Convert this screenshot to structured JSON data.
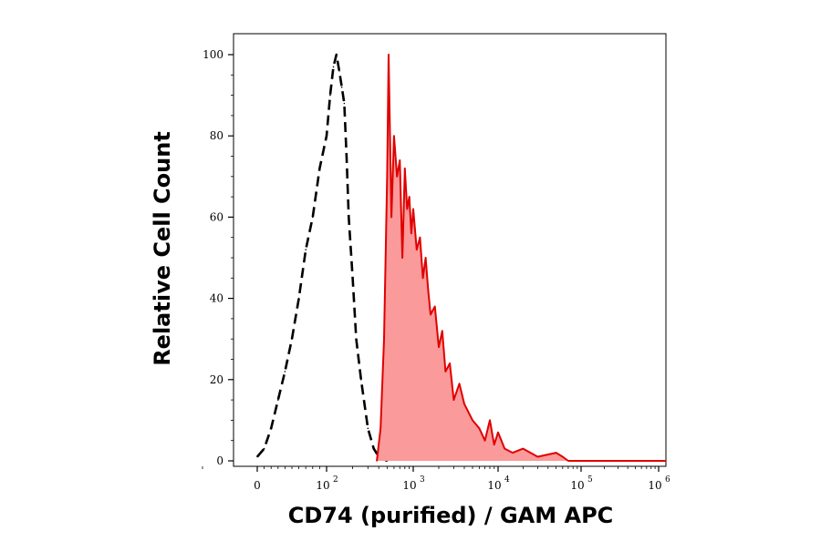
{
  "chart_data": {
    "type": "area",
    "xlabel": "CD74 (purified) / GAM APC",
    "ylabel": "Relative Cell Count",
    "x_scale": "biexponential",
    "xlim": [
      -1,
      1000000
    ],
    "ylim": [
      0,
      100
    ],
    "x_ticks": [
      {
        "base": "0",
        "exp": ""
      },
      {
        "base": "10",
        "exp": "2"
      },
      {
        "base": "10",
        "exp": "3"
      },
      {
        "base": "10",
        "exp": "4"
      },
      {
        "base": "10",
        "exp": "5"
      },
      {
        "base": "10",
        "exp": "6"
      }
    ],
    "y_ticks": [
      "0",
      "20",
      "40",
      "60",
      "80",
      "100"
    ],
    "grid": false,
    "series": [
      {
        "style": "dashed-outline",
        "color": "#000000",
        "x": [
          0,
          10,
          20,
          30,
          40,
          50,
          60,
          70,
          80,
          90,
          100,
          110,
          120,
          130,
          140,
          150,
          160,
          170,
          180,
          200,
          220,
          250,
          300,
          350,
          400,
          500
        ],
        "y": [
          1,
          3,
          8,
          15,
          22,
          30,
          40,
          52,
          60,
          72,
          80,
          90,
          97,
          100,
          96,
          92,
          88,
          75,
          60,
          45,
          30,
          20,
          8,
          3,
          1,
          0
        ]
      },
      {
        "style": "filled",
        "color": "#e00000",
        "fill": "#fa9a9a",
        "x": [
          380,
          420,
          460,
          500,
          520,
          560,
          600,
          650,
          700,
          750,
          800,
          850,
          900,
          950,
          1000,
          1100,
          1200,
          1300,
          1400,
          1500,
          1600,
          1800,
          2000,
          2200,
          2400,
          2700,
          3000,
          3500,
          4000,
          5000,
          6000,
          7000,
          8000,
          9000,
          10000,
          12000,
          15000,
          20000,
          30000,
          50000,
          60000,
          70000
        ],
        "y": [
          0,
          8,
          30,
          70,
          100,
          60,
          80,
          70,
          74,
          50,
          72,
          62,
          65,
          56,
          62,
          52,
          55,
          45,
          50,
          42,
          36,
          38,
          28,
          32,
          22,
          24,
          15,
          19,
          14,
          10,
          8,
          5,
          10,
          4,
          7,
          3,
          2,
          3,
          1,
          2,
          1,
          0
        ]
      }
    ]
  }
}
